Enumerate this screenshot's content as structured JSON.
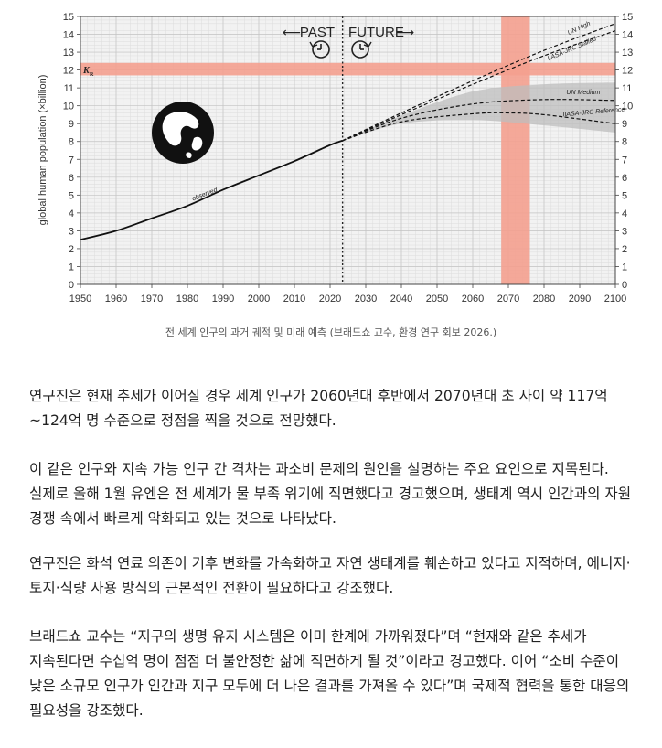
{
  "chart_data": {
    "type": "line",
    "title": "",
    "ylabel": "global human population (×billion)",
    "xlabel": "",
    "xlim": [
      1950,
      2100
    ],
    "ylim": [
      0,
      15
    ],
    "x_ticks": [
      "1950",
      "1960",
      "1970",
      "1980",
      "1990",
      "2000",
      "2010",
      "2020",
      "2030",
      "2040",
      "2050",
      "2060",
      "2070",
      "2080",
      "2090",
      "2100"
    ],
    "y_ticks": [
      "0",
      "1",
      "2",
      "3",
      "4",
      "5",
      "6",
      "7",
      "8",
      "9",
      "10",
      "11",
      "12",
      "13",
      "14",
      "15"
    ],
    "divider_year": 2023.5,
    "past_label": "PAST",
    "future_label": "FUTURE",
    "kr_label": "K",
    "kr_subscript": "R",
    "kr_band": [
      11.7,
      12.4
    ],
    "peak_band_years": [
      2068,
      2076
    ],
    "band_color": "#f4a08f",
    "series": [
      {
        "name": "observed",
        "style": "solid",
        "x": [
          1950,
          1960,
          1970,
          1980,
          1990,
          2000,
          2010,
          2020,
          2023.5
        ],
        "y": [
          2.5,
          3.0,
          3.7,
          4.4,
          5.3,
          6.1,
          6.9,
          7.8,
          8.05
        ]
      },
      {
        "name": "UN High",
        "style": "dashed",
        "x": [
          2023.5,
          2040,
          2060,
          2080,
          2100
        ],
        "y": [
          8.05,
          9.6,
          11.4,
          13.1,
          14.6
        ]
      },
      {
        "name": "IIASA-JRC Stalled",
        "style": "dashed",
        "x": [
          2023.5,
          2040,
          2060,
          2080,
          2100
        ],
        "y": [
          8.05,
          9.5,
          11.2,
          12.8,
          14.2
        ]
      },
      {
        "name": "UN Medium",
        "style": "dashed",
        "x": [
          2023.5,
          2040,
          2060,
          2080,
          2100
        ],
        "y": [
          8.05,
          9.3,
          10.1,
          10.35,
          10.3
        ]
      },
      {
        "name": "IIASA-JRC Reference",
        "style": "dashed",
        "x": [
          2023.5,
          2040,
          2060,
          2070,
          2080,
          2100
        ],
        "y": [
          8.05,
          9.1,
          9.55,
          9.6,
          9.5,
          9.0
        ]
      }
    ],
    "uncertainty_band": {
      "x": [
        2023.5,
        2040,
        2060,
        2080,
        2100
      ],
      "upper": [
        8.05,
        9.45,
        10.8,
        11.2,
        11.3
      ],
      "lower": [
        8.05,
        9.0,
        9.2,
        8.9,
        8.5
      ]
    }
  },
  "caption": "전 세계 인구의 과거 궤적 및 미래 예측 (브래드쇼 교수, 환경 연구 회보 2026.)",
  "article": {
    "p1": "연구진은 현재 추세가 이어질 경우 세계 인구가 2060년대 후반에서 2070년대 초 사이 약 117억~124억 명 수준으로 정점을 찍을 것으로 전망했다.",
    "p2": "이 같은 인구와 지속 가능 인구 간 격차는 과소비 문제의 원인을 설명하는 주요 요인으로 지목된다. 실제로 올해 1월 유엔은 전 세계가 물 부족 위기에 직면했다고 경고했으며, 생태계 역시 인간과의 자원 경쟁 속에서 빠르게 악화되고 있는 것으로 나타났다.",
    "p3": "연구진은 화석 연료 의존이 기후 변화를 가속화하고 자연 생태계를 훼손하고 있다고 지적하며, 에너지·토지·식량 사용 방식의 근본적인 전환이 필요하다고 강조했다.",
    "p4": "브래드쇼 교수는 “지구의 생명 유지 시스템은 이미 한계에 가까워졌다”며 “현재와 같은 추세가 지속된다면 수십억 명이 점점 더 불안정한 삶에 직면하게 될 것”이라고 경고했다. 이어 “소비 수준이 낮은 소규모 인구가 인간과 지구 모두에 더 나은 결과를 가져올 수 있다”며 국제적 협력을 통한 대응의 필요성을 강조했다."
  }
}
